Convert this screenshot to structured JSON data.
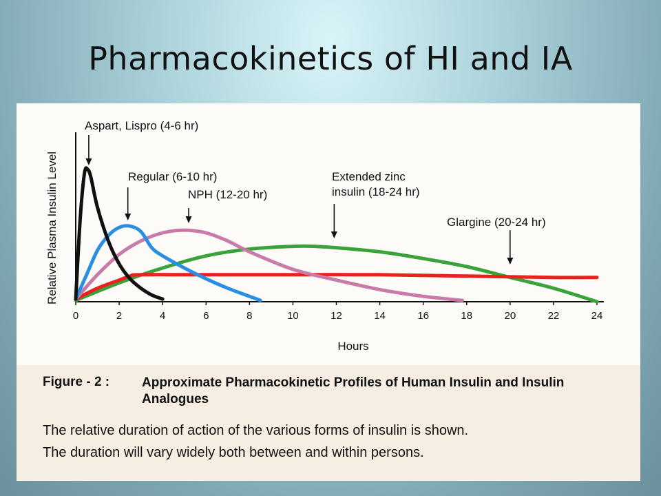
{
  "slide": {
    "title": "Pharmacokinetics of HI and IA"
  },
  "chart_data": {
    "type": "line",
    "title": "",
    "xlabel": "Hours",
    "ylabel": "Relative Plasma Insulin Level",
    "xlim": [
      0,
      24
    ],
    "ylim": [
      0,
      1
    ],
    "xticks": [
      0,
      2,
      4,
      6,
      8,
      10,
      12,
      14,
      16,
      18,
      20,
      22,
      24
    ],
    "grid": false,
    "series": [
      {
        "id": "aspart",
        "color": "#111111",
        "x": [
          0,
          0.2,
          0.4,
          0.55,
          0.7,
          1.0,
          1.5,
          2.0,
          2.5,
          3.0,
          3.5,
          4.0
        ],
        "y": [
          0.02,
          0.6,
          0.95,
          0.98,
          0.92,
          0.7,
          0.45,
          0.28,
          0.17,
          0.1,
          0.05,
          0.02
        ]
      },
      {
        "id": "regular",
        "color": "#2a8fe0",
        "x": [
          0,
          0.5,
          1.0,
          1.5,
          2.0,
          2.5,
          3.0,
          3.5,
          4.0,
          5.0,
          6.0,
          7.0,
          8.0,
          8.5
        ],
        "y": [
          0.02,
          0.2,
          0.38,
          0.49,
          0.55,
          0.56,
          0.52,
          0.4,
          0.34,
          0.25,
          0.17,
          0.1,
          0.04,
          0.01
        ]
      },
      {
        "id": "nph",
        "color": "#c87aa8",
        "x": [
          0,
          1,
          2,
          3,
          4,
          5,
          6,
          7,
          8,
          10,
          12,
          14,
          16,
          17.8
        ],
        "y": [
          0.02,
          0.2,
          0.35,
          0.45,
          0.51,
          0.53,
          0.51,
          0.45,
          0.37,
          0.24,
          0.16,
          0.09,
          0.04,
          0.01
        ]
      },
      {
        "id": "extended-zinc",
        "color": "#3aa23a",
        "x": [
          0,
          2,
          4,
          6,
          8,
          10,
          11,
          12,
          14,
          16,
          18,
          20,
          22,
          24
        ],
        "y": [
          0.01,
          0.14,
          0.25,
          0.34,
          0.39,
          0.41,
          0.41,
          0.4,
          0.37,
          0.32,
          0.26,
          0.18,
          0.1,
          0.0
        ]
      },
      {
        "id": "glargine",
        "color": "#e8231e",
        "x": [
          0,
          1,
          2,
          2.5,
          3,
          6,
          10,
          14,
          18,
          22,
          24
        ],
        "y": [
          0.02,
          0.1,
          0.16,
          0.19,
          0.2,
          0.2,
          0.2,
          0.2,
          0.19,
          0.18,
          0.18
        ]
      }
    ],
    "annotations": [
      {
        "id": "aspart",
        "line1": "Aspart, Lispro (4-6 hr)",
        "line2": "",
        "arrow_x": 0.6
      },
      {
        "id": "regular",
        "line1": "Regular (6-10 hr)",
        "line2": "",
        "arrow_x": 2.4
      },
      {
        "id": "nph",
        "line1": "NPH (12-20 hr)",
        "line2": "",
        "arrow_x": 5.2
      },
      {
        "id": "extended-zinc",
        "line1": "Extended zinc",
        "line2": "insulin (18-24 hr)",
        "arrow_x": 11.9
      },
      {
        "id": "glargine",
        "line1": "Glargine (20-24 hr)",
        "line2": "",
        "arrow_x": 20.0
      }
    ]
  },
  "caption": {
    "label": "Figure - 2 :",
    "title": "Approximate Pharmacokinetic Profiles of Human Insulin and Insulin Analogues",
    "line1": "The relative duration of action of the various forms of insulin is shown.",
    "line2": "The duration will vary widely both between and within persons."
  }
}
